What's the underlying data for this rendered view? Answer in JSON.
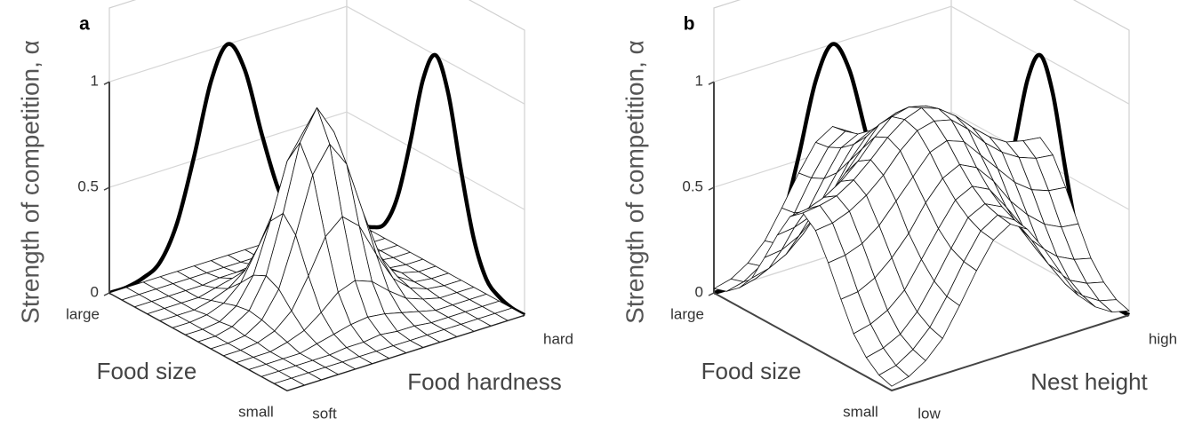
{
  "chart_data": [
    {
      "type": "surface3d",
      "panel_label": "a",
      "zlabel": "Strength of competition, α",
      "xlabel": "Food size",
      "ylabel": "Food hardness",
      "x_end_labels": [
        "large",
        "small"
      ],
      "y_end_labels": [
        "soft",
        "hard"
      ],
      "zlim": [
        0,
        1.35
      ],
      "zticks": [
        0,
        0.5,
        1
      ],
      "grid": true,
      "color": "#000000",
      "profile_y": [
        0,
        0,
        0.02,
        0.07,
        0.23,
        0.52,
        0.85,
        1,
        0.85,
        0.52,
        0.23,
        0.07,
        0.02,
        0,
        0
      ],
      "profile_x": [
        0,
        0,
        0.02,
        0.07,
        0.23,
        0.52,
        0.85,
        1,
        0.85,
        0.52,
        0.23,
        0.07,
        0.02,
        0,
        0
      ],
      "z": [
        [
          0,
          0,
          0,
          0,
          0,
          0,
          0,
          0,
          0,
          0,
          0,
          0,
          0,
          0,
          0
        ],
        [
          0,
          0,
          0,
          0,
          0,
          0,
          0,
          0,
          0,
          0,
          0,
          0,
          0,
          0,
          0
        ],
        [
          0,
          0,
          0,
          0,
          0,
          0.01,
          0.01,
          0.02,
          0.01,
          0.01,
          0,
          0,
          0,
          0,
          0
        ],
        [
          0,
          0,
          0,
          0,
          0.02,
          0.04,
          0.06,
          0.07,
          0.06,
          0.04,
          0.02,
          0,
          0,
          0,
          0
        ],
        [
          0,
          0,
          0,
          0.02,
          0.05,
          0.11,
          0.18,
          0.21,
          0.18,
          0.11,
          0.05,
          0.02,
          0,
          0,
          0
        ],
        [
          0,
          0,
          0.01,
          0.04,
          0.11,
          0.25,
          0.41,
          0.48,
          0.41,
          0.25,
          0.11,
          0.04,
          0.01,
          0,
          0
        ],
        [
          0,
          0,
          0.01,
          0.06,
          0.18,
          0.41,
          0.67,
          0.79,
          0.67,
          0.41,
          0.18,
          0.06,
          0.01,
          0,
          0
        ],
        [
          0,
          0,
          0.02,
          0.07,
          0.21,
          0.48,
          0.79,
          0.93,
          0.79,
          0.48,
          0.21,
          0.07,
          0.02,
          0,
          0
        ],
        [
          0,
          0,
          0.01,
          0.06,
          0.18,
          0.41,
          0.67,
          0.79,
          0.67,
          0.41,
          0.18,
          0.06,
          0.01,
          0,
          0
        ],
        [
          0,
          0,
          0.01,
          0.04,
          0.11,
          0.25,
          0.41,
          0.48,
          0.41,
          0.25,
          0.11,
          0.04,
          0.01,
          0,
          0
        ],
        [
          0,
          0,
          0,
          0.02,
          0.05,
          0.11,
          0.18,
          0.21,
          0.18,
          0.11,
          0.05,
          0.02,
          0,
          0,
          0
        ],
        [
          0,
          0,
          0,
          0,
          0.02,
          0.04,
          0.06,
          0.07,
          0.06,
          0.04,
          0.02,
          0,
          0,
          0,
          0
        ],
        [
          0,
          0,
          0,
          0,
          0,
          0.01,
          0.01,
          0.02,
          0.01,
          0.01,
          0,
          0,
          0,
          0,
          0
        ],
        [
          0,
          0,
          0,
          0,
          0,
          0,
          0,
          0,
          0,
          0,
          0,
          0,
          0,
          0,
          0
        ],
        [
          0,
          0,
          0,
          0,
          0,
          0,
          0,
          0,
          0,
          0,
          0,
          0,
          0,
          0,
          0
        ]
      ]
    },
    {
      "type": "surface3d",
      "panel_label": "b",
      "zlabel": "Strength of competition, α",
      "xlabel": "Food size",
      "ylabel": "Nest height",
      "x_end_labels": [
        "large",
        "small"
      ],
      "y_end_labels": [
        "low",
        "high"
      ],
      "zlim": [
        0,
        1.35
      ],
      "zticks": [
        0,
        0.5,
        1
      ],
      "grid": true,
      "color": "#000000",
      "profile_y": [
        0,
        0,
        0.02,
        0.07,
        0.23,
        0.52,
        0.85,
        1,
        0.85,
        0.52,
        0.23,
        0.07,
        0.02,
        0,
        0
      ],
      "profile_x": [
        0,
        0,
        0.02,
        0.07,
        0.23,
        0.52,
        0.85,
        1,
        0.85,
        0.52,
        0.23,
        0.07,
        0.02,
        0,
        0
      ],
      "z": [
        [
          0.02,
          0.04,
          0.09,
          0.17,
          0.3,
          0.44,
          0.56,
          0.61,
          0.56,
          0.44,
          0.3,
          0.17,
          0.09,
          0.04,
          0.02
        ],
        [
          0.04,
          0.06,
          0.11,
          0.19,
          0.31,
          0.45,
          0.57,
          0.62,
          0.57,
          0.45,
          0.31,
          0.19,
          0.11,
          0.06,
          0.04
        ],
        [
          0.09,
          0.11,
          0.15,
          0.23,
          0.35,
          0.48,
          0.6,
          0.64,
          0.6,
          0.48,
          0.35,
          0.23,
          0.15,
          0.11,
          0.09
        ],
        [
          0.17,
          0.19,
          0.23,
          0.3,
          0.42,
          0.54,
          0.65,
          0.69,
          0.65,
          0.54,
          0.42,
          0.3,
          0.23,
          0.19,
          0.17
        ],
        [
          0.3,
          0.31,
          0.35,
          0.42,
          0.51,
          0.63,
          0.72,
          0.76,
          0.72,
          0.63,
          0.51,
          0.42,
          0.35,
          0.31,
          0.3
        ],
        [
          0.44,
          0.45,
          0.48,
          0.54,
          0.63,
          0.72,
          0.81,
          0.84,
          0.81,
          0.72,
          0.63,
          0.54,
          0.48,
          0.45,
          0.44
        ],
        [
          0.56,
          0.57,
          0.6,
          0.65,
          0.72,
          0.81,
          0.88,
          0.9,
          0.88,
          0.81,
          0.72,
          0.65,
          0.6,
          0.57,
          0.56
        ],
        [
          0.61,
          0.62,
          0.64,
          0.69,
          0.76,
          0.84,
          0.9,
          0.93,
          0.9,
          0.84,
          0.76,
          0.69,
          0.64,
          0.62,
          0.61
        ],
        [
          0.56,
          0.57,
          0.6,
          0.65,
          0.72,
          0.81,
          0.88,
          0.9,
          0.88,
          0.81,
          0.72,
          0.65,
          0.6,
          0.57,
          0.56
        ],
        [
          0.44,
          0.45,
          0.48,
          0.54,
          0.63,
          0.72,
          0.81,
          0.84,
          0.81,
          0.72,
          0.63,
          0.54,
          0.48,
          0.45,
          0.44
        ],
        [
          0.3,
          0.31,
          0.35,
          0.42,
          0.51,
          0.63,
          0.72,
          0.76,
          0.72,
          0.63,
          0.51,
          0.42,
          0.35,
          0.31,
          0.3
        ],
        [
          0.17,
          0.19,
          0.23,
          0.3,
          0.42,
          0.54,
          0.65,
          0.69,
          0.65,
          0.54,
          0.42,
          0.3,
          0.23,
          0.19,
          0.17
        ],
        [
          0.09,
          0.11,
          0.15,
          0.23,
          0.35,
          0.48,
          0.6,
          0.64,
          0.6,
          0.48,
          0.35,
          0.23,
          0.15,
          0.11,
          0.09
        ],
        [
          0.04,
          0.06,
          0.11,
          0.19,
          0.31,
          0.45,
          0.57,
          0.62,
          0.57,
          0.45,
          0.31,
          0.19,
          0.11,
          0.06,
          0.04
        ],
        [
          0.02,
          0.04,
          0.09,
          0.17,
          0.3,
          0.44,
          0.56,
          0.61,
          0.56,
          0.44,
          0.3,
          0.17,
          0.09,
          0.04,
          0.02
        ]
      ]
    }
  ]
}
